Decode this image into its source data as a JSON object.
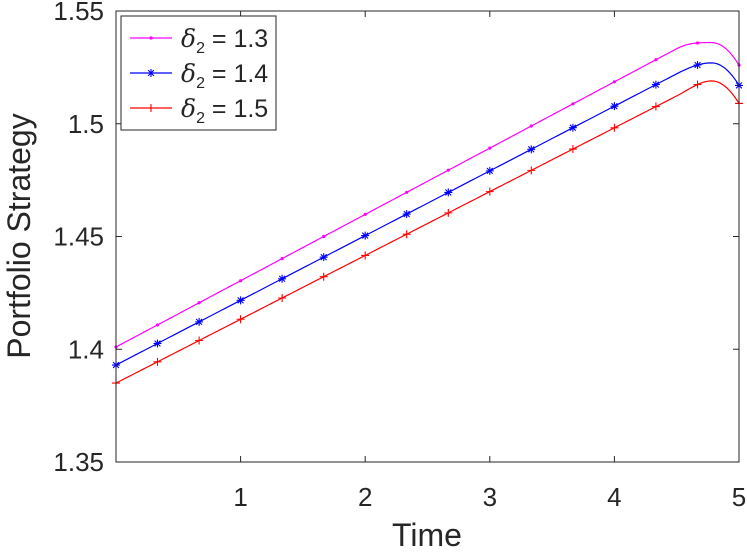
{
  "chart_data": {
    "type": "line",
    "title": "",
    "xlabel": "Time",
    "ylabel": "Portfolio Strategy",
    "xlim": [
      0,
      5
    ],
    "ylim": [
      1.35,
      1.55
    ],
    "xticks": [
      1,
      2,
      3,
      4,
      5
    ],
    "xtick_labels": [
      "1",
      "2",
      "3",
      "4",
      "5"
    ],
    "yticks": [
      1.35,
      1.4,
      1.45,
      1.5,
      1.55
    ],
    "ytick_labels": [
      "1.35",
      "1.4",
      "1.45",
      "1.5",
      "1.55"
    ],
    "grid": false,
    "legend_position": "top-left",
    "marker_x": [
      0,
      0.333,
      0.667,
      1.0,
      1.333,
      1.667,
      2.0,
      2.333,
      2.667,
      3.0,
      3.333,
      3.667,
      4.0,
      4.333,
      4.667,
      5.0
    ],
    "series": [
      {
        "name": "δ₂ = 1.3",
        "legend_symbol": "δ",
        "legend_sub": "2",
        "legend_value": " = 1.3",
        "color": "#ff00ff",
        "marker": "dot",
        "start": 1.401,
        "slope": 0.0294,
        "peak": 1.536,
        "end": 1.526
      },
      {
        "name": "δ₂ = 1.4",
        "legend_symbol": "δ",
        "legend_sub": "2",
        "legend_value": " = 1.4",
        "color": "#0000ff",
        "marker": "asterisk",
        "start": 1.393,
        "slope": 0.0287,
        "peak": 1.527,
        "end": 1.517
      },
      {
        "name": "δ₂ = 1.5",
        "legend_symbol": "δ",
        "legend_sub": "2",
        "legend_value": " = 1.5",
        "color": "#ff0000",
        "marker": "plus",
        "start": 1.385,
        "slope": 0.0283,
        "peak": 1.519,
        "end": 1.509
      }
    ]
  }
}
